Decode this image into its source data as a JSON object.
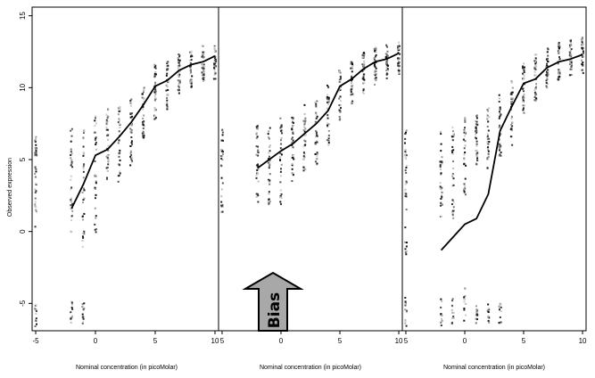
{
  "figure": {
    "ylabel": "Observed expression",
    "annotation": "Bias"
  },
  "chart_data": [
    {
      "type": "scatter",
      "panel": "left",
      "title": "",
      "xlabel": "Nominal concentration (in picoMolar)",
      "ylabel": "Observed expression",
      "xlim": [
        -5.3,
        10.3
      ],
      "ylim": [
        -6.9,
        15.6
      ],
      "x_ticks": [
        "-5",
        "0",
        "5",
        "10"
      ],
      "y_ticks": [
        "-5",
        "0",
        "5",
        "10",
        "15"
      ],
      "grid": false,
      "legend": "none",
      "points_description_x": [
        -5,
        -2,
        -1,
        0,
        1,
        2,
        3,
        4,
        5,
        6,
        7,
        8,
        9,
        10
      ],
      "series": [
        {
          "kind": "line",
          "x": [
            -2,
            -1,
            0,
            1,
            2,
            3,
            4,
            5,
            6,
            7,
            8,
            9,
            10
          ],
          "y": [
            1.6,
            3.3,
            5.3,
            5.7,
            6.6,
            7.6,
            8.8,
            10.1,
            10.5,
            11.2,
            11.6,
            11.8,
            12.2
          ]
        }
      ],
      "point_clusters": [
        {
          "x": -5,
          "upper": [
            0.3,
            6.6
          ],
          "lower": [
            -6.6,
            -4.8
          ]
        },
        {
          "x": -2,
          "upper": [
            -1.0,
            7.2
          ],
          "lower": [
            -6.4,
            -4.8
          ]
        },
        {
          "x": -1,
          "upper": [
            -1.1,
            7.1
          ],
          "lower": [
            -6.4,
            -4.9
          ]
        },
        {
          "x": 0,
          "upper": [
            -0.1,
            8.2
          ]
        },
        {
          "x": 1,
          "upper": [
            3.6,
            8.5
          ]
        },
        {
          "x": 2,
          "upper": [
            3.4,
            9.0
          ]
        },
        {
          "x": 3,
          "upper": [
            4.6,
            9.5
          ]
        },
        {
          "x": 4,
          "upper": [
            6.4,
            10.1
          ]
        },
        {
          "x": 5,
          "upper": [
            7.6,
            11.7
          ]
        },
        {
          "x": 6,
          "upper": [
            8.5,
            12.0
          ]
        },
        {
          "x": 7,
          "upper": [
            9.6,
            12.4
          ]
        },
        {
          "x": 8,
          "upper": [
            10.0,
            12.6
          ]
        },
        {
          "x": 9,
          "upper": [
            10.4,
            12.9
          ]
        },
        {
          "x": 10,
          "upper": [
            10.6,
            13.0
          ]
        }
      ]
    },
    {
      "type": "scatter",
      "panel": "middle",
      "title": "",
      "xlabel": "Nominal concentration (in picoMolar)",
      "ylabel": "",
      "xlim": [
        -5.3,
        10.3
      ],
      "ylim": [
        -6.9,
        15.6
      ],
      "x_ticks": [
        "5",
        "0",
        "5",
        "10"
      ],
      "grid": false,
      "legend": "none",
      "series": [
        {
          "kind": "line",
          "x": [
            -2,
            -1,
            0,
            1,
            2,
            3,
            4,
            5,
            6,
            7,
            8,
            9,
            10
          ],
          "y": [
            4.4,
            5.0,
            5.6,
            6.1,
            6.8,
            7.5,
            8.4,
            10.1,
            10.6,
            11.3,
            11.8,
            12.0,
            12.4
          ]
        }
      ],
      "point_clusters": [
        {
          "x": -5,
          "upper": [
            1.0,
            7.1
          ]
        },
        {
          "x": -2,
          "upper": [
            1.8,
            7.5
          ]
        },
        {
          "x": -1,
          "upper": [
            1.8,
            7.6
          ]
        },
        {
          "x": 0,
          "upper": [
            1.8,
            8.0
          ]
        },
        {
          "x": 1,
          "upper": [
            3.5,
            8.4
          ]
        },
        {
          "x": 2,
          "upper": [
            4.2,
            8.8
          ]
        },
        {
          "x": 3,
          "upper": [
            4.5,
            9.3
          ]
        },
        {
          "x": 4,
          "upper": [
            6.0,
            10.2
          ]
        },
        {
          "x": 5,
          "upper": [
            7.5,
            11.2
          ]
        },
        {
          "x": 6,
          "upper": [
            8.6,
            12.0
          ]
        },
        {
          "x": 7,
          "upper": [
            9.5,
            12.5
          ]
        },
        {
          "x": 8,
          "upper": [
            10.2,
            12.8
          ]
        },
        {
          "x": 9,
          "upper": [
            10.6,
            13.0
          ]
        },
        {
          "x": 10,
          "upper": [
            10.8,
            13.2
          ]
        }
      ]
    },
    {
      "type": "scatter",
      "panel": "right",
      "title": "",
      "xlabel": "Nominal concentration (in picoMolar)",
      "ylabel": "",
      "xlim": [
        -5.3,
        10.3
      ],
      "ylim": [
        -6.9,
        15.6
      ],
      "x_ticks": [
        "5",
        "0",
        "5",
        "10"
      ],
      "grid": false,
      "legend": "none",
      "series": [
        {
          "kind": "line",
          "x": [
            -2,
            -1,
            0,
            1,
            2,
            3,
            4,
            5,
            6,
            7,
            8,
            9,
            10
          ],
          "y": [
            -1.3,
            -0.4,
            0.5,
            0.9,
            2.6,
            7.0,
            8.7,
            10.3,
            10.6,
            11.4,
            11.8,
            12.0,
            12.3
          ]
        }
      ],
      "point_clusters": [
        {
          "x": -5,
          "upper": [
            -1.6,
            7.5
          ],
          "lower": [
            -6.6,
            -4.6
          ]
        },
        {
          "x": -2,
          "upper": [
            0.8,
            7.5
          ],
          "lower": [
            -6.6,
            -4.6
          ]
        },
        {
          "x": -1,
          "upper": [
            0.9,
            7.5
          ],
          "lower": [
            -6.6,
            -4.6
          ]
        },
        {
          "x": 0,
          "upper": [
            2.0,
            8.0
          ],
          "lower": [
            -6.4,
            -3.8
          ]
        },
        {
          "x": 1,
          "upper": [
            4.5,
            8.1
          ],
          "lower": [
            -6.4,
            -5.0
          ]
        },
        {
          "x": 2,
          "upper": [
            4.2,
            8.7
          ],
          "lower": [
            -6.4,
            -5.0
          ]
        },
        {
          "x": 3,
          "upper": [
            5.0,
            9.5
          ],
          "lower": [
            -6.4,
            -5.0
          ]
        },
        {
          "x": 4,
          "upper": [
            6.0,
            10.6
          ]
        },
        {
          "x": 5,
          "upper": [
            8.2,
            11.7
          ]
        },
        {
          "x": 6,
          "upper": [
            9.1,
            12.3
          ]
        },
        {
          "x": 7,
          "upper": [
            10.0,
            12.8
          ]
        },
        {
          "x": 8,
          "upper": [
            10.5,
            13.2
          ]
        },
        {
          "x": 9,
          "upper": [
            10.8,
            13.4
          ]
        },
        {
          "x": 10,
          "upper": [
            11.0,
            13.5
          ]
        }
      ]
    }
  ]
}
